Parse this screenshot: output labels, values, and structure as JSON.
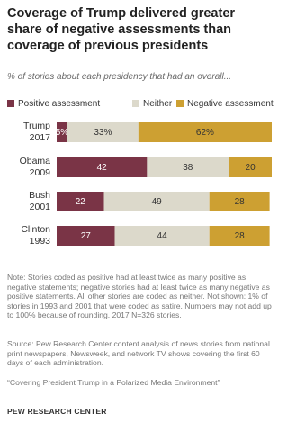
{
  "chart_data": {
    "type": "stacked_bar_horizontal",
    "title": "Coverage of Trump delivered greater share of negative assessments than coverage of previous presidents",
    "subtitle": "% of stories about each presidency that had an overall...",
    "categories": [
      "Trump 2017",
      "Obama 2009",
      "Bush 2001",
      "Clinton 1993"
    ],
    "series": [
      {
        "name": "Positive assessment",
        "color": "#7a3446",
        "values": [
          5,
          42,
          22,
          27
        ],
        "value_labels": [
          "5%",
          "42",
          "22",
          "27"
        ],
        "label_color": "#ffffff"
      },
      {
        "name": "Neither",
        "color": "#dcd9cb",
        "values": [
          33,
          38,
          49,
          44
        ],
        "value_labels": [
          "33%",
          "38",
          "49",
          "44"
        ],
        "label_color": "#333333"
      },
      {
        "name": "Negative assessment",
        "color": "#cda032",
        "values": [
          62,
          20,
          28,
          28
        ],
        "value_labels": [
          "62%",
          "20",
          "28",
          "28"
        ],
        "label_color": "#333333"
      }
    ],
    "xlim": [
      0,
      100
    ],
    "notes": [
      "Note: Stories coded as positive had at least twice as many positive as negative statements; negative stories had at least twice as many negative as positive statements. All other stories are coded as neither. Not shown: 1% of stories in 1993 and 2001 that were coded as satire. Numbers may not add up to 100% because of rounding. 2017 N=326 stories.",
      "Source: Pew Research Center content analysis of news stories from national print newspapers, Newsweek, and network TV shows covering the first 60 days of each administration.",
      "“Covering President Trump in a Polarized Media Environment”"
    ],
    "footer": "PEW RESEARCH CENTER"
  }
}
